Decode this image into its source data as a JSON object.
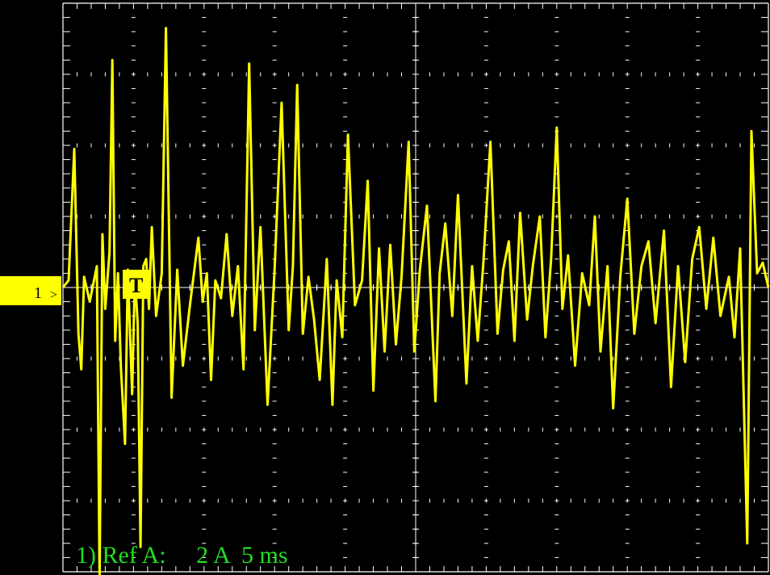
{
  "chart_data": {
    "type": "line",
    "title": "",
    "xlabel": "",
    "ylabel": "",
    "x_divisions": 10,
    "y_divisions": 8,
    "xlim": [
      0,
      50
    ],
    "ylim": [
      -8,
      8
    ],
    "x_unit": "ms",
    "y_unit": "A",
    "grid": true,
    "trace_color": "#ffff00",
    "series": [
      {
        "x": [
          0,
          0.4,
          0.8,
          1.1,
          1.3,
          1.5,
          1.9,
          2.4,
          2.6,
          2.8,
          3.0,
          3.3,
          3.5,
          3.7,
          3.9,
          4.1,
          4.4,
          4.6,
          4.9,
          5.1,
          5.3,
          5.5,
          5.7,
          5.9,
          6.1,
          6.3,
          6.6,
          7.0,
          7.3,
          7.7,
          8.1,
          8.5,
          9.0,
          9.6,
          9.9,
          10.2,
          10.5,
          10.8,
          11.2,
          11.6,
          12.0,
          12.4,
          12.8,
          13.2,
          13.6,
          14.0,
          14.5,
          15.0,
          15.5,
          16.0,
          16.3,
          16.6,
          17.0,
          17.4,
          17.8,
          18.2,
          18.7,
          19.1,
          19.4,
          19.8,
          20.2,
          20.7,
          21.2,
          21.6,
          22.0,
          22.4,
          22.8,
          23.2,
          23.6,
          24.0,
          24.5,
          24.9,
          25.3,
          25.8,
          26.4,
          26.7,
          27.1,
          27.6,
          28.0,
          28.6,
          29.0,
          29.4,
          29.8,
          30.3,
          30.8,
          31.2,
          31.6,
          32.0,
          32.4,
          32.9,
          33.3,
          33.8,
          34.2,
          34.6,
          35.0,
          35.4,
          35.8,
          36.3,
          36.8,
          37.3,
          37.7,
          38.1,
          38.6,
          39.0,
          39.5,
          40.0,
          40.5,
          41.0,
          41.5,
          42.0,
          42.6,
          43.1,
          43.6,
          44.1,
          44.6,
          45.1,
          45.6,
          46.1,
          46.6,
          47.2,
          47.6,
          48.0,
          48.5,
          48.8,
          49.2,
          49.6,
          50.0
        ],
        "y": [
          0.0,
          0.2,
          3.9,
          -1.3,
          -2.3,
          0.3,
          -0.4,
          0.6,
          -8.2,
          1.5,
          -0.6,
          1.0,
          6.4,
          -1.5,
          0.4,
          -2.2,
          -4.4,
          0.5,
          -3.0,
          0.3,
          -1.0,
          -7.3,
          0.6,
          0.8,
          -0.6,
          1.7,
          -0.8,
          0.4,
          7.3,
          -3.1,
          0.5,
          -2.2,
          -0.5,
          1.4,
          -0.4,
          0.4,
          -2.6,
          0.2,
          -0.3,
          1.5,
          -0.8,
          0.6,
          -2.3,
          6.3,
          -1.2,
          1.7,
          -3.3,
          0.5,
          5.2,
          -1.2,
          0.6,
          5.7,
          -1.3,
          0.3,
          -0.9,
          -2.6,
          0.8,
          -3.3,
          0.2,
          -1.4,
          4.3,
          -0.5,
          0.2,
          3.0,
          -2.9,
          1.1,
          -1.8,
          1.2,
          -1.6,
          0.3,
          4.1,
          -1.8,
          0.5,
          2.3,
          -3.2,
          0.4,
          1.8,
          -0.8,
          2.6,
          -2.7,
          0.6,
          -1.5,
          0.7,
          4.1,
          -1.3,
          0.5,
          1.3,
          -1.5,
          2.1,
          -0.9,
          0.6,
          2.0,
          -1.4,
          0.8,
          4.5,
          -0.6,
          0.9,
          -2.2,
          0.4,
          -0.5,
          2.0,
          -1.8,
          0.6,
          -3.4,
          0.3,
          2.5,
          -1.3,
          0.6,
          1.3,
          -1.0,
          1.6,
          -2.8,
          0.6,
          -2.1,
          0.8,
          1.7,
          -0.6,
          1.4,
          -0.8,
          0.3,
          -1.4,
          1.1,
          -7.2,
          4.4,
          0.4,
          0.7,
          0.0
        ]
      }
    ]
  },
  "channel_marker": {
    "label": "1",
    "arrow": ">",
    "color": "#ffff00"
  },
  "trigger_marker": {
    "label": "T"
  },
  "readout": {
    "text": "1) Ref A:     2 A  5 ms",
    "color": "#22dd22"
  }
}
